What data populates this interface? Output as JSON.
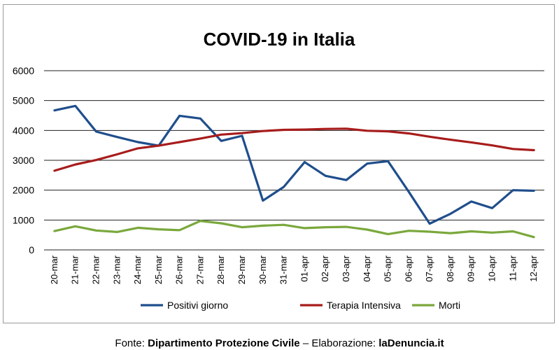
{
  "chart_data": {
    "type": "line",
    "title": "COVID-19 in Italia",
    "xlabel": "",
    "ylabel": "",
    "ylim": [
      0,
      6000
    ],
    "yticks": [
      "0",
      "1000",
      "2000",
      "3000",
      "4000",
      "5000",
      "6000"
    ],
    "grid": true,
    "legend_position": "bottom",
    "categories": [
      "20-mar",
      "21-mar",
      "22-mar",
      "23-mar",
      "24-mar",
      "25-mar",
      "26-mar",
      "27-mar",
      "28-mar",
      "29-mar",
      "30-mar",
      "31-mar",
      "01-apr",
      "02-apr",
      "03-apr",
      "04-apr",
      "05-apr",
      "06-apr",
      "07-apr",
      "08-apr",
      "09-apr",
      "10-apr",
      "11-apr",
      "12-apr"
    ],
    "series": [
      {
        "name": "Positivi giorno",
        "color": "#1f4e8c",
        "values": [
          4670,
          4820,
          3960,
          3780,
          3610,
          3490,
          4490,
          4400,
          3650,
          3820,
          1650,
          2110,
          2940,
          2480,
          2340,
          2890,
          2970,
          1940,
          880,
          1210,
          1620,
          1400,
          2000,
          1980
        ]
      },
      {
        "name": "Terapia Intensiva",
        "color": "#a81c1c",
        "values": [
          2650,
          2860,
          3010,
          3200,
          3400,
          3490,
          3610,
          3730,
          3860,
          3910,
          3980,
          4020,
          4030,
          4050,
          4060,
          3990,
          3970,
          3900,
          3790,
          3690,
          3600,
          3500,
          3380,
          3340
        ]
      },
      {
        "name": "Morti",
        "color": "#7aa83c",
        "values": [
          630,
          790,
          650,
          600,
          740,
          690,
          660,
          970,
          890,
          760,
          810,
          840,
          730,
          760,
          770,
          680,
          530,
          640,
          610,
          560,
          620,
          580,
          620,
          430
        ]
      }
    ]
  },
  "footer": {
    "prefix": "Fonte: ",
    "source": "Dipartimento Protezione Civile",
    "separator": " – Elaborazione: ",
    "author": "laDenuncia.it"
  }
}
